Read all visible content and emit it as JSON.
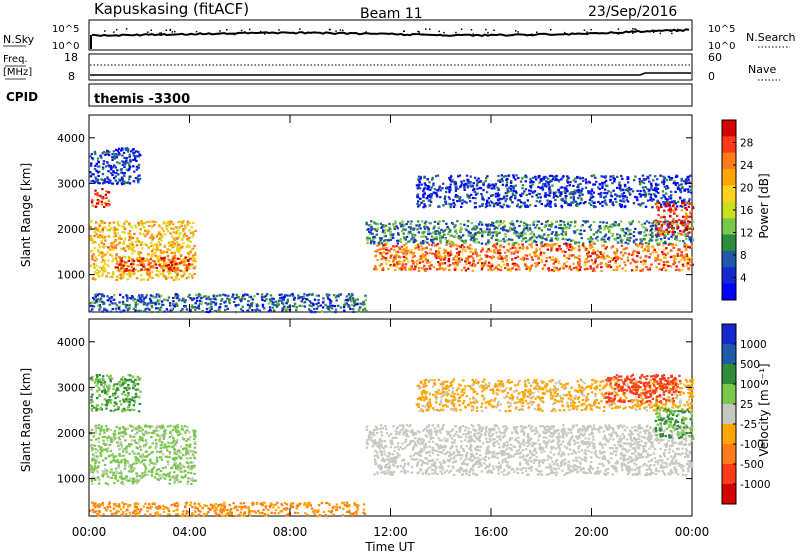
{
  "header": {
    "station": "Kapuskasing (fitACF)",
    "beam": "Beam 11",
    "date": "23/Sep/2016"
  },
  "status_panels": {
    "nsky_label": "N.Sky",
    "nsky_ticks": [
      "10^5",
      "10^0"
    ],
    "nsearch_label": "N.Search",
    "nsearch_ticks": [
      "10^5",
      "10^0"
    ],
    "freq_label": "Freq.",
    "freq_unit": "[MHz]",
    "freq_ticks": [
      "18",
      "8"
    ],
    "nave_label": "Nave",
    "nave_ticks": [
      "60",
      "0"
    ],
    "cpid_label": "CPID",
    "cpid_value": "themis -3300"
  },
  "chart_data": [
    {
      "type": "heatmap",
      "name": "power",
      "ylabel": "Slant Range [km]",
      "xlabel": "",
      "colorbar_label": "Power [dB]",
      "colorbar_ticks": [
        "28",
        "24",
        "20",
        "16",
        "12",
        "8",
        "4"
      ],
      "colorbar_colors": [
        "#d40000",
        "#ff3a1a",
        "#ff7b1a",
        "#ffa500",
        "#ffd21a",
        "#c8e020",
        "#7ac84a",
        "#2e8b3a",
        "#1e5aa8",
        "#1428d0",
        "#0000ff"
      ],
      "yticks": [
        1000,
        2000,
        3000,
        4000
      ],
      "ylim": [
        180,
        4500
      ],
      "xlim": [
        0,
        24
      ],
      "regions": [
        {
          "t": [
            0,
            4.2
          ],
          "r": [
            900,
            2200
          ],
          "power_db": 20
        },
        {
          "t": [
            1,
            4
          ],
          "r": [
            1100,
            1400
          ],
          "power_db": 26
        },
        {
          "t": [
            0,
            0.8
          ],
          "r": [
            2500,
            2900
          ],
          "power_db": 28
        },
        {
          "t": [
            0,
            2
          ],
          "r": [
            3000,
            3800
          ],
          "power_db": 6
        },
        {
          "t": [
            0,
            11
          ],
          "r": [
            200,
            600
          ],
          "power_db": 8
        },
        {
          "t": [
            11.3,
            24
          ],
          "r": [
            1100,
            1700
          ],
          "power_db": 24
        },
        {
          "t": [
            11,
            24
          ],
          "r": [
            1700,
            2200
          ],
          "power_db": 10
        },
        {
          "t": [
            13,
            24
          ],
          "r": [
            2500,
            3200
          ],
          "power_db": 6
        },
        {
          "t": [
            22.5,
            24
          ],
          "r": [
            1900,
            2600
          ],
          "power_db": 26
        }
      ]
    },
    {
      "type": "heatmap",
      "name": "velocity",
      "ylabel": "Slant Range [km]",
      "xlabel": "Time UT",
      "colorbar_label": "Velocity [m s⁻¹]",
      "colorbar_ticks": [
        "1000",
        "500",
        "100",
        "25",
        "-25",
        "-100",
        "-500",
        "-1000"
      ],
      "colorbar_colors": [
        "#1428d0",
        "#1e5aa8",
        "#2e8b3a",
        "#7ac84a",
        "#c8c8c0",
        "#ffa500",
        "#ff7b1a",
        "#ff3a1a",
        "#d40000"
      ],
      "yticks": [
        1000,
        2000,
        3000,
        4000
      ],
      "ylim": [
        180,
        4500
      ],
      "xlim": [
        0,
        24
      ],
      "xticks": [
        "00:00",
        "04:00",
        "08:00",
        "12:00",
        "16:00",
        "20:00",
        "00:00"
      ],
      "regions": [
        {
          "t": [
            0,
            4.2
          ],
          "r": [
            900,
            2200
          ],
          "velocity_ms": 50
        },
        {
          "t": [
            0,
            2
          ],
          "r": [
            2500,
            3300
          ],
          "velocity_ms": 100
        },
        {
          "t": [
            0,
            11
          ],
          "r": [
            200,
            500
          ],
          "velocity_ms": -100
        },
        {
          "t": [
            11.3,
            24
          ],
          "r": [
            1100,
            1700
          ],
          "velocity_ms": 0
        },
        {
          "t": [
            11,
            24
          ],
          "r": [
            1700,
            2200
          ],
          "velocity_ms": 0
        },
        {
          "t": [
            13,
            24
          ],
          "r": [
            2500,
            3200
          ],
          "velocity_ms": -50
        },
        {
          "t": [
            20.5,
            23.5
          ],
          "r": [
            2700,
            3300
          ],
          "velocity_ms": -200
        },
        {
          "t": [
            22.5,
            24
          ],
          "r": [
            1900,
            2600
          ],
          "velocity_ms": 100
        }
      ]
    }
  ]
}
